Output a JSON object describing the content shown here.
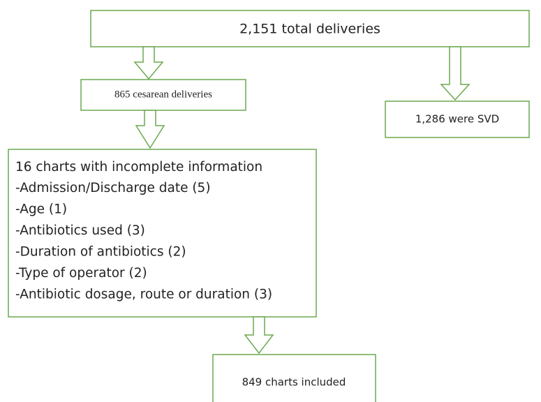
{
  "nodes": [
    {
      "label": "2,151 total deliveries"
    },
    {
      "label": "865 cesarean deliveries"
    },
    {
      "label": "1,286 were SVD"
    },
    {
      "label": "16 charts with incomplete information",
      "items": [
        "-Admission/Discharge date (5)",
        "-Age (1)",
        "-Antibiotics used (3)",
        "-Duration of antibiotics (2)",
        "-Type of operator (2)",
        "-Antibiotic dosage, route or duration (3)"
      ]
    },
    {
      "label": "849 charts included"
    }
  ]
}
